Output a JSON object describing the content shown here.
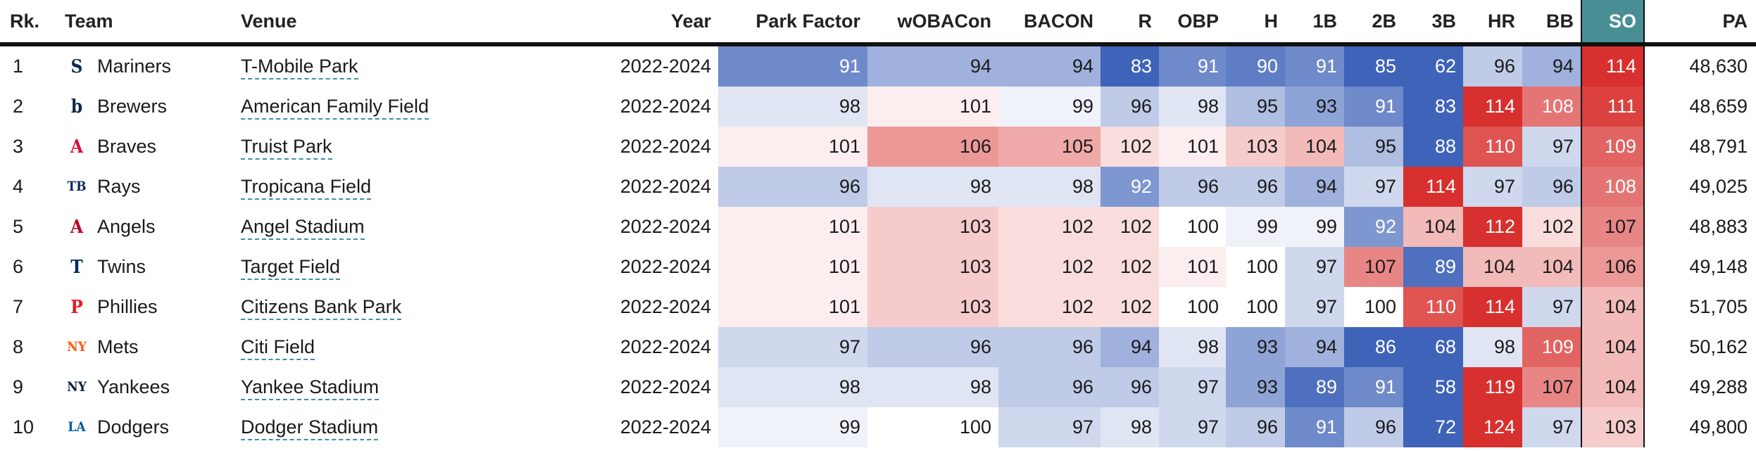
{
  "columns": {
    "rk": "Rk.",
    "team": "Team",
    "venue": "Venue",
    "year": "Year",
    "park_factor": "Park Factor",
    "woba_con": "wOBACon",
    "bacon": "BACON",
    "r": "R",
    "obp": "OBP",
    "h": "H",
    "b1": "1B",
    "b2": "2B",
    "b3": "3B",
    "hr": "HR",
    "bb": "BB",
    "so": "SO",
    "pa": "PA"
  },
  "sorted_column": "SO",
  "colors": {
    "header_sorted_bg": "#4a8e95",
    "scale_low": "#3f63b8",
    "scale_mid": "#ffffff",
    "scale_high": "#d8302e",
    "venue_underline": "#3e8fb0"
  },
  "rows": [
    {
      "rk": "1",
      "team": "Mariners",
      "logo": {
        "icon": "mariners-logo-icon",
        "glyph": "S",
        "color": "#0c2c56"
      },
      "venue": "T-Mobile Park",
      "year": "2022-2024",
      "park_factor": "91",
      "woba_con": "94",
      "bacon": "94",
      "r": "83",
      "obp": "91",
      "h": "90",
      "b1": "91",
      "b2": "85",
      "b3": "62",
      "hr": "96",
      "bb": "94",
      "so": "114",
      "pa": "48,630"
    },
    {
      "rk": "2",
      "team": "Brewers",
      "logo": {
        "icon": "brewers-logo-icon",
        "glyph": "b",
        "color": "#12284b"
      },
      "venue": "American Family Field",
      "year": "2022-2024",
      "park_factor": "98",
      "woba_con": "101",
      "bacon": "99",
      "r": "96",
      "obp": "98",
      "h": "95",
      "b1": "93",
      "b2": "91",
      "b3": "83",
      "hr": "114",
      "bb": "108",
      "so": "111",
      "pa": "48,659"
    },
    {
      "rk": "3",
      "team": "Braves",
      "logo": {
        "icon": "braves-logo-icon",
        "glyph": "A",
        "color": "#ce1141"
      },
      "venue": "Truist Park",
      "year": "2022-2024",
      "park_factor": "101",
      "woba_con": "106",
      "bacon": "105",
      "r": "102",
      "obp": "101",
      "h": "103",
      "b1": "104",
      "b2": "95",
      "b3": "88",
      "hr": "110",
      "bb": "97",
      "so": "109",
      "pa": "48,791"
    },
    {
      "rk": "4",
      "team": "Rays",
      "logo": {
        "icon": "rays-logo-icon",
        "glyph": "TB",
        "color": "#092c5c"
      },
      "venue": "Tropicana Field",
      "year": "2022-2024",
      "park_factor": "96",
      "woba_con": "98",
      "bacon": "98",
      "r": "92",
      "obp": "96",
      "h": "96",
      "b1": "94",
      "b2": "97",
      "b3": "114",
      "hr": "97",
      "bb": "96",
      "so": "108",
      "pa": "49,025"
    },
    {
      "rk": "5",
      "team": "Angels",
      "logo": {
        "icon": "angels-logo-icon",
        "glyph": "A",
        "color": "#ba0021"
      },
      "venue": "Angel Stadium",
      "year": "2022-2024",
      "park_factor": "101",
      "woba_con": "103",
      "bacon": "102",
      "r": "102",
      "obp": "100",
      "h": "99",
      "b1": "99",
      "b2": "92",
      "b3": "104",
      "hr": "112",
      "bb": "102",
      "so": "107",
      "pa": "48,883"
    },
    {
      "rk": "6",
      "team": "Twins",
      "logo": {
        "icon": "twins-logo-icon",
        "glyph": "T",
        "color": "#002b5c"
      },
      "venue": "Target Field",
      "year": "2022-2024",
      "park_factor": "101",
      "woba_con": "103",
      "bacon": "102",
      "r": "102",
      "obp": "101",
      "h": "100",
      "b1": "97",
      "b2": "107",
      "b3": "89",
      "hr": "104",
      "bb": "104",
      "so": "106",
      "pa": "49,148"
    },
    {
      "rk": "7",
      "team": "Phillies",
      "logo": {
        "icon": "phillies-logo-icon",
        "glyph": "P",
        "color": "#e81828"
      },
      "venue": "Citizens Bank Park",
      "year": "2022-2024",
      "park_factor": "101",
      "woba_con": "103",
      "bacon": "102",
      "r": "102",
      "obp": "100",
      "h": "100",
      "b1": "97",
      "b2": "100",
      "b3": "110",
      "hr": "114",
      "bb": "97",
      "so": "104",
      "pa": "51,705"
    },
    {
      "rk": "8",
      "team": "Mets",
      "logo": {
        "icon": "mets-logo-icon",
        "glyph": "NY",
        "color": "#ff5910"
      },
      "venue": "Citi Field",
      "year": "2022-2024",
      "park_factor": "97",
      "woba_con": "96",
      "bacon": "96",
      "r": "94",
      "obp": "98",
      "h": "93",
      "b1": "94",
      "b2": "86",
      "b3": "68",
      "hr": "98",
      "bb": "109",
      "so": "104",
      "pa": "50,162"
    },
    {
      "rk": "9",
      "team": "Yankees",
      "logo": {
        "icon": "yankees-logo-icon",
        "glyph": "NY",
        "color": "#0c2340"
      },
      "venue": "Yankee Stadium",
      "year": "2022-2024",
      "park_factor": "98",
      "woba_con": "98",
      "bacon": "96",
      "r": "96",
      "obp": "97",
      "h": "93",
      "b1": "89",
      "b2": "91",
      "b3": "58",
      "hr": "119",
      "bb": "107",
      "so": "104",
      "pa": "49,288"
    },
    {
      "rk": "10",
      "team": "Dodgers",
      "logo": {
        "icon": "dodgers-logo-icon",
        "glyph": "LA",
        "color": "#005a9c"
      },
      "venue": "Dodger Stadium",
      "year": "2022-2024",
      "park_factor": "99",
      "woba_con": "100",
      "bacon": "97",
      "r": "98",
      "obp": "97",
      "h": "96",
      "b1": "91",
      "b2": "96",
      "b3": "72",
      "hr": "124",
      "bb": "97",
      "so": "103",
      "pa": "49,800"
    }
  ]
}
